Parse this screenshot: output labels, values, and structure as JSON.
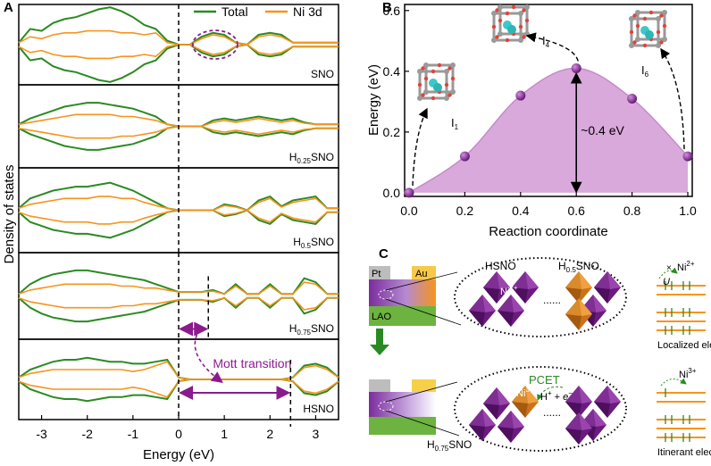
{
  "chart_data": [
    {
      "type": "dos",
      "panel": "A",
      "xlabel": "Energy (eV)",
      "ylabel": "Density of states",
      "x": [
        -3.5,
        -3.25,
        -3,
        -2.75,
        -2.5,
        -2.25,
        -2,
        -1.75,
        -1.5,
        -1.25,
        -1,
        -0.75,
        -0.5,
        -0.25,
        0,
        0.25,
        0.5,
        0.75,
        1,
        1.25,
        1.5,
        1.75,
        2,
        2.25,
        2.5,
        2.75,
        3,
        3.25,
        3.5
      ],
      "xlim": [
        -3.5,
        3.5
      ],
      "xticks": [
        -3,
        -2,
        -1,
        0,
        1,
        2,
        3
      ],
      "annotation": "Mott transition",
      "panels": [
        {
          "label": [
            "SNO"
          ],
          "vlines": [
            0
          ],
          "series": [
            {
              "name": "Total",
              "color": "#2a8a22",
              "values": [
                0.05,
                0.4,
                0.35,
                0.55,
                0.65,
                0.7,
                0.8,
                0.9,
                0.95,
                0.85,
                0.7,
                0.5,
                0.4,
                0.1,
                0,
                0,
                0.2,
                0.3,
                0.25,
                0.05,
                0,
                0.25,
                0.3,
                0.25,
                0.05,
                0.05,
                0.05,
                0.05,
                0.05
              ]
            },
            {
              "name": "Ni 3d",
              "color": "#f7941d",
              "values": [
                0.05,
                0.2,
                0.15,
                0.25,
                0.3,
                0.3,
                0.35,
                0.35,
                0.35,
                0.3,
                0.3,
                0.25,
                0.3,
                0.05,
                0,
                0,
                0.15,
                0.25,
                0.2,
                0.05,
                0,
                0.2,
                0.25,
                0.2,
                0.05,
                0.05,
                0.05,
                0.05,
                0.05
              ]
            }
          ]
        },
        {
          "label": [
            "H",
            "0.25",
            "SNO"
          ],
          "vlines": [
            0
          ],
          "series": [
            {
              "name": "Total",
              "color": "#2a8a22",
              "values": [
                0.05,
                0.2,
                0.3,
                0.4,
                0.5,
                0.55,
                0.6,
                0.6,
                0.55,
                0.5,
                0.45,
                0.35,
                0.25,
                0.05,
                0,
                0,
                0,
                0.15,
                0.2,
                0.15,
                0.2,
                0.25,
                0.2,
                0.15,
                0.2,
                0.1,
                0.05,
                0.05,
                0.05
              ]
            },
            {
              "name": "Ni 3d",
              "color": "#f7941d",
              "values": [
                0.05,
                0.1,
                0.15,
                0.2,
                0.25,
                0.3,
                0.3,
                0.3,
                0.3,
                0.25,
                0.25,
                0.2,
                0.15,
                0.05,
                0,
                0,
                0,
                0.1,
                0.15,
                0.1,
                0.15,
                0.2,
                0.15,
                0.1,
                0.15,
                0.08,
                0.05,
                0.05,
                0.05
              ]
            }
          ]
        },
        {
          "label": [
            "H",
            "0.5",
            "SNO"
          ],
          "vlines": [
            0
          ],
          "series": [
            {
              "name": "Total",
              "color": "#2a8a22",
              "values": [
                0.05,
                0.3,
                0.4,
                0.5,
                0.55,
                0.6,
                0.6,
                0.65,
                0.7,
                0.6,
                0.5,
                0.35,
                0.2,
                0.05,
                0,
                0,
                0,
                0,
                0.15,
                0.1,
                0,
                0.25,
                0.35,
                0.1,
                0.25,
                0.3,
                0.35,
                0.05,
                0.05
              ]
            },
            {
              "name": "Ni 3d",
              "color": "#f7941d",
              "values": [
                0.05,
                0.15,
                0.2,
                0.25,
                0.3,
                0.3,
                0.3,
                0.35,
                0.35,
                0.3,
                0.3,
                0.2,
                0.12,
                0.05,
                0,
                0,
                0,
                0,
                0.12,
                0.08,
                0,
                0.2,
                0.3,
                0.08,
                0.2,
                0.25,
                0.3,
                0.05,
                0.05
              ]
            }
          ]
        },
        {
          "label": [
            "H",
            "0.75",
            "SNO"
          ],
          "vlines": [
            0,
            0.65
          ],
          "series": [
            {
              "name": "Total",
              "color": "#2a8a22",
              "values": [
                0.05,
                0.3,
                0.45,
                0.55,
                0.6,
                0.65,
                0.65,
                0.6,
                0.55,
                0.5,
                0.45,
                0.4,
                0.3,
                0.2,
                0.1,
                0.1,
                0.1,
                0.15,
                0.05,
                0.3,
                0.05,
                0.05,
                0.3,
                0.05,
                0.05,
                0.45,
                0.35,
                0.05,
                0.05
              ]
            },
            {
              "name": "Ni 3d",
              "color": "#f7941d",
              "values": [
                0.05,
                0.15,
                0.2,
                0.25,
                0.3,
                0.3,
                0.3,
                0.3,
                0.3,
                0.25,
                0.25,
                0.2,
                0.2,
                0.15,
                0.1,
                0.1,
                0.1,
                0.12,
                0.05,
                0.25,
                0.05,
                0.05,
                0.25,
                0.05,
                0.05,
                0.35,
                0.3,
                0.05,
                0.05
              ]
            }
          ]
        },
        {
          "label": [
            "HSNO"
          ],
          "vlines": [
            0,
            2.45
          ],
          "series": [
            {
              "name": "Total",
              "color": "#2a8a22",
              "values": [
                0.05,
                0.25,
                0.35,
                0.45,
                0.5,
                0.5,
                0.55,
                0.5,
                0.45,
                0.45,
                0.4,
                0.4,
                0.45,
                0.5,
                0.05,
                0,
                0,
                0,
                0,
                0,
                0,
                0,
                0,
                0,
                0.05,
                0.35,
                0.4,
                0.3,
                0.05
              ]
            },
            {
              "name": "Ni 3d",
              "color": "#f7941d",
              "values": [
                0.05,
                0.15,
                0.2,
                0.25,
                0.25,
                0.25,
                0.25,
                0.25,
                0.25,
                0.25,
                0.2,
                0.25,
                0.35,
                0.45,
                0.05,
                0,
                0,
                0,
                0,
                0,
                0,
                0,
                0,
                0,
                0.05,
                0.3,
                0.35,
                0.25,
                0.05
              ]
            }
          ]
        }
      ]
    },
    {
      "type": "scatter",
      "panel": "B",
      "xlabel": "Reaction coordinate",
      "ylabel": "Energy (eV)",
      "x": [
        0,
        0.2,
        0.4,
        0.6,
        0.8,
        1.0
      ],
      "values": [
        0,
        0.12,
        0.32,
        0.41,
        0.31,
        0.12
      ],
      "color": "#7b1f8a",
      "fill": "#d9a9db",
      "xlim": [
        -0.016,
        1.016
      ],
      "ylim": [
        -0.012,
        0.62
      ],
      "xticks": [
        {
          "value": 0,
          "label": "0.0"
        },
        {
          "value": 0.2,
          "label": "0.2"
        },
        {
          "value": 0.4,
          "label": "0.4"
        },
        {
          "value": 0.6,
          "label": "0.6"
        },
        {
          "value": 0.8,
          "label": "0.8"
        },
        {
          "value": 1,
          "label": "1.0"
        }
      ],
      "yticks": [
        {
          "value": 0,
          "label": "0.0"
        },
        {
          "value": 0.2,
          "label": "0.2"
        },
        {
          "value": 0.4,
          "label": "0.4"
        },
        {
          "value": 0.6,
          "label": "0.6"
        }
      ],
      "annotation": "~0.4 eV",
      "states": [
        [
          "I",
          "1"
        ],
        [
          "I",
          "4"
        ],
        [
          "I",
          "6"
        ]
      ]
    }
  ],
  "diagram": {
    "label": "C",
    "top": {
      "pt": "Pt",
      "au": "Au",
      "substrate": "LAO",
      "left_phase": "HSNO",
      "left_ion": [
        "Ni",
        "2+"
      ],
      "dots": "......",
      "right_phase": [
        "H",
        "0.5",
        "SNO"
      ],
      "block": "×",
      "hubbard": "U",
      "level_ion": [
        "Ni",
        "2+"
      ],
      "caption": "Localized electron"
    },
    "bottom": {
      "process": "PCET",
      "reactants": [
        "H",
        "+",
        " + ",
        "e",
        "−"
      ],
      "ion": [
        "Ni",
        "3+"
      ],
      "dots": "......",
      "phase": [
        "H",
        "0.75",
        "SNO"
      ],
      "level_ion": [
        "Ni",
        "3+"
      ],
      "caption": "Itinerant electron"
    }
  }
}
